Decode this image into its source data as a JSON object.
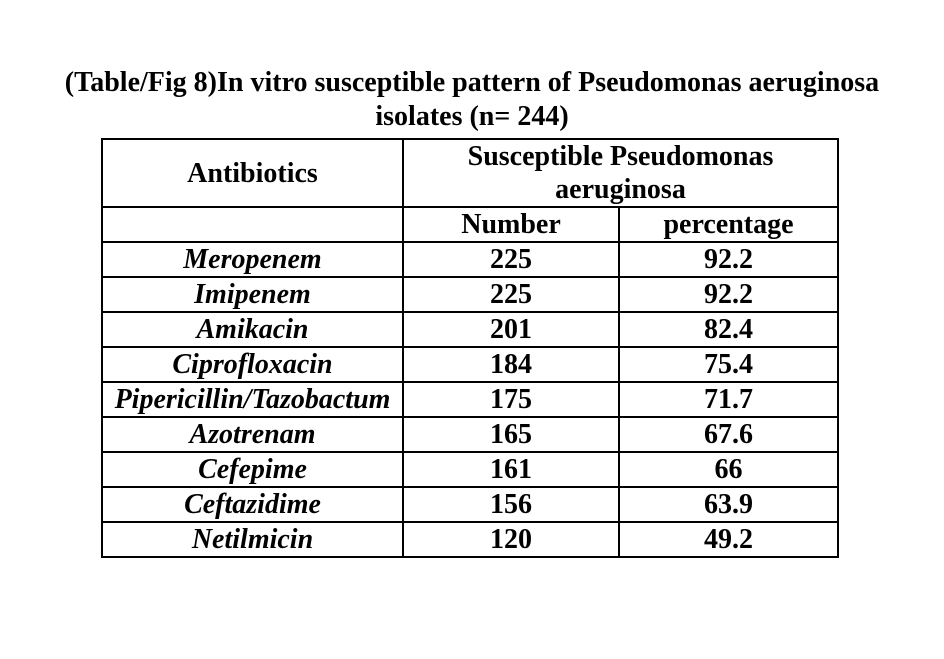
{
  "page": {
    "title_line1": "(Table/Fig 8)In vitro susceptible pattern of Pseudomonas aeruginosa",
    "title_line2": "isolates (n= 244)"
  },
  "colors": {
    "text": "#000000",
    "background": "#ffffff",
    "table_border": "#000000"
  },
  "table": {
    "col1_header": "Antibiotics",
    "group_header": "Susceptible Pseudomonas aeruginosa",
    "sub_headers": {
      "number": "Number",
      "percentage": "percentage"
    },
    "rows": [
      {
        "antibiotic": "Meropenem",
        "number": "225",
        "percentage": "92.2"
      },
      {
        "antibiotic": "Imipenem",
        "number": "225",
        "percentage": "92.2"
      },
      {
        "antibiotic": "Amikacin",
        "number": "201",
        "percentage": "82.4"
      },
      {
        "antibiotic": "Ciprofloxacin",
        "number": "184",
        "percentage": "75.4"
      },
      {
        "antibiotic": "Pipericillin/Tazobactum",
        "number": "175",
        "percentage": "71.7"
      },
      {
        "antibiotic": "Azotrenam",
        "number": "165",
        "percentage": "67.6"
      },
      {
        "antibiotic": "Cefepime",
        "number": "161",
        "percentage": "66"
      },
      {
        "antibiotic": "Ceftazidime",
        "number": "156",
        "percentage": "63.9"
      },
      {
        "antibiotic": "Netilmicin",
        "number": "120",
        "percentage": "49.2"
      }
    ]
  }
}
